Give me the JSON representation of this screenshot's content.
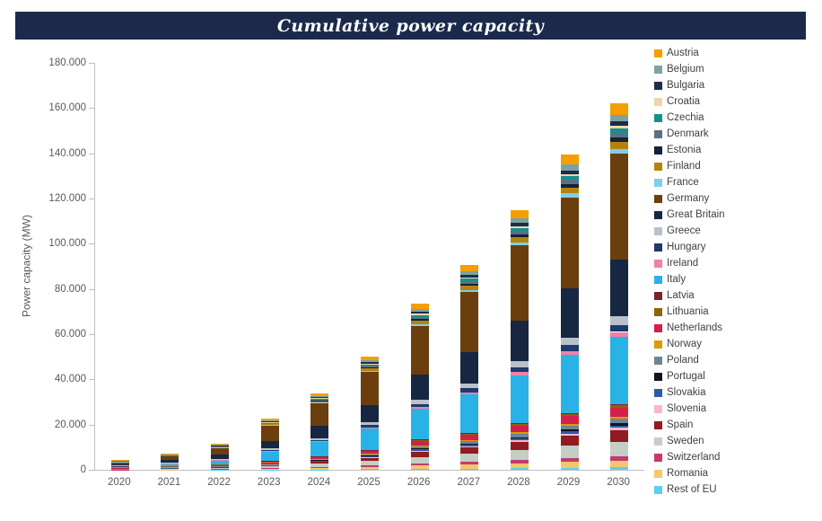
{
  "title": "Cumulative power capacity",
  "colors": {
    "title_bar_bg": "#1b2a4a",
    "title_text": "#ffffff",
    "axis": "#bfbfbf",
    "tick_text": "#595959"
  },
  "chart_data": {
    "type": "bar",
    "stacked": true,
    "title": "Cumulative power capacity",
    "xlabel": "",
    "ylabel": "Power capacity (MW)",
    "ylim": [
      0,
      180000
    ],
    "ytick_step": 20000,
    "ytick_labels": [
      "0",
      "20.000",
      "40.000",
      "60.000",
      "80.000",
      "100.000",
      "120.000",
      "140.000",
      "160.000",
      "180.000"
    ],
    "grid": false,
    "legend_position": "right",
    "categories": [
      "2020",
      "2021",
      "2022",
      "2023",
      "2024",
      "2025",
      "2026",
      "2027",
      "2028",
      "2029",
      "2030"
    ],
    "totals_approx_mw": [
      4400,
      6600,
      11100,
      22800,
      34700,
      50100,
      73300,
      91700,
      115600,
      139500,
      162000
    ],
    "stacking_order_note": "bottom of bar = last legend entry (Rest of EU), top of bar = first legend entry (Austria)",
    "series": [
      {
        "name": "Austria",
        "color": "#f59e00",
        "values": [
          100,
          200,
          400,
          700,
          1100,
          1600,
          2300,
          2800,
          3600,
          4300,
          5000
        ]
      },
      {
        "name": "Belgium",
        "color": "#7da2a2",
        "values": [
          100,
          100,
          200,
          400,
          600,
          900,
          1400,
          1700,
          2100,
          2600,
          3000
        ]
      },
      {
        "name": "Bulgaria",
        "color": "#1d2b4d",
        "values": [
          100,
          100,
          100,
          300,
          400,
          600,
          900,
          1100,
          1400,
          1700,
          2000
        ]
      },
      {
        "name": "Croatia",
        "color": "#ecd8a4",
        "values": [
          0,
          100,
          100,
          100,
          200,
          300,
          500,
          600,
          700,
          900,
          1000
        ]
      },
      {
        "name": "Czechia",
        "color": "#178f8f",
        "values": [
          100,
          100,
          100,
          300,
          400,
          600,
          900,
          1100,
          1400,
          1700,
          2000
        ]
      },
      {
        "name": "Denmark",
        "color": "#5b7183",
        "values": [
          100,
          100,
          100,
          300,
          400,
          600,
          900,
          1100,
          1400,
          1700,
          2000
        ]
      },
      {
        "name": "Estonia",
        "color": "#152238",
        "values": [
          100,
          100,
          100,
          300,
          400,
          600,
          900,
          1100,
          1400,
          1700,
          2000
        ]
      },
      {
        "name": "Finland",
        "color": "#b5830c",
        "values": [
          100,
          100,
          200,
          400,
          600,
          900,
          1400,
          1700,
          2100,
          2600,
          3000
        ]
      },
      {
        "name": "France",
        "color": "#82cde8",
        "values": [
          100,
          100,
          100,
          300,
          400,
          600,
          900,
          1100,
          1400,
          1700,
          2000
        ]
      },
      {
        "name": "Germany",
        "color": "#6b3e0e",
        "values": [
          1200,
          1900,
          3300,
          6600,
          9900,
          14600,
          21200,
          26300,
          33400,
          40400,
          47000
        ]
      },
      {
        "name": "Great Britain",
        "color": "#172742",
        "values": [
          600,
          1000,
          1800,
          3500,
          5300,
          7800,
          11300,
          14000,
          17800,
          21500,
          25000
        ]
      },
      {
        "name": "Greece",
        "color": "#b9c1ca",
        "values": [
          100,
          200,
          300,
          600,
          800,
          1200,
          1800,
          2200,
          2800,
          3400,
          4000
        ]
      },
      {
        "name": "Hungary",
        "color": "#1f3a6e",
        "values": [
          100,
          100,
          200,
          400,
          600,
          900,
          1400,
          1700,
          2100,
          2600,
          3000
        ]
      },
      {
        "name": "Ireland",
        "color": "#ee82a8",
        "values": [
          100,
          100,
          100,
          300,
          400,
          600,
          900,
          1100,
          1400,
          1700,
          2000
        ]
      },
      {
        "name": "Italy",
        "color": "#29b2e6",
        "values": [
          800,
          1200,
          2100,
          4200,
          6300,
          9300,
          13500,
          16800,
          21300,
          25800,
          30000
        ]
      },
      {
        "name": "Latvia",
        "color": "#7c2130",
        "values": [
          0,
          0,
          0,
          100,
          100,
          200,
          200,
          300,
          400,
          400,
          500
        ]
      },
      {
        "name": "Lithuania",
        "color": "#8c6409",
        "values": [
          0,
          100,
          100,
          100,
          200,
          300,
          500,
          600,
          700,
          900,
          1000
        ]
      },
      {
        "name": "Netherlands",
        "color": "#d41f4b",
        "values": [
          100,
          200,
          300,
          600,
          800,
          1200,
          1800,
          2200,
          2800,
          3400,
          4000
        ]
      },
      {
        "name": "Norway",
        "color": "#df9806",
        "values": [
          0,
          100,
          100,
          100,
          200,
          300,
          500,
          600,
          700,
          900,
          1000
        ]
      },
      {
        "name": "Poland",
        "color": "#6e8596",
        "values": [
          100,
          100,
          100,
          300,
          400,
          600,
          900,
          1100,
          1400,
          1700,
          2000
        ]
      },
      {
        "name": "Portugal",
        "color": "#10141f",
        "values": [
          0,
          100,
          100,
          100,
          200,
          300,
          500,
          600,
          700,
          900,
          1000
        ]
      },
      {
        "name": "Slovakia",
        "color": "#2f5aa8",
        "values": [
          0,
          100,
          100,
          100,
          200,
          300,
          500,
          600,
          700,
          900,
          1000
        ]
      },
      {
        "name": "Slovenia",
        "color": "#f6b8cd",
        "values": [
          0,
          100,
          100,
          100,
          200,
          300,
          500,
          600,
          700,
          900,
          1000
        ]
      },
      {
        "name": "Spain",
        "color": "#8e1c20",
        "values": [
          100,
          200,
          400,
          700,
          1100,
          1600,
          2300,
          2800,
          3600,
          4300,
          5000
        ]
      },
      {
        "name": "Sweden",
        "color": "#c4cec4",
        "values": [
          200,
          300,
          500,
          900,
          1400,
          2000,
          2900,
          3600,
          4600,
          5600,
          6500
        ]
      },
      {
        "name": "Switzerland",
        "color": "#c43a6e",
        "values": [
          100,
          100,
          100,
          300,
          400,
          600,
          900,
          1100,
          1400,
          1700,
          2000
        ]
      },
      {
        "name": "Romania",
        "color": "#f4c76d",
        "values": [
          100,
          100,
          200,
          400,
          600,
          900,
          1400,
          1700,
          2100,
          2600,
          3000
        ]
      },
      {
        "name": "Rest of EU",
        "color": "#5ad0f0",
        "values": [
          0,
          100,
          100,
          100,
          200,
          300,
          500,
          600,
          700,
          900,
          1000
        ]
      }
    ]
  }
}
